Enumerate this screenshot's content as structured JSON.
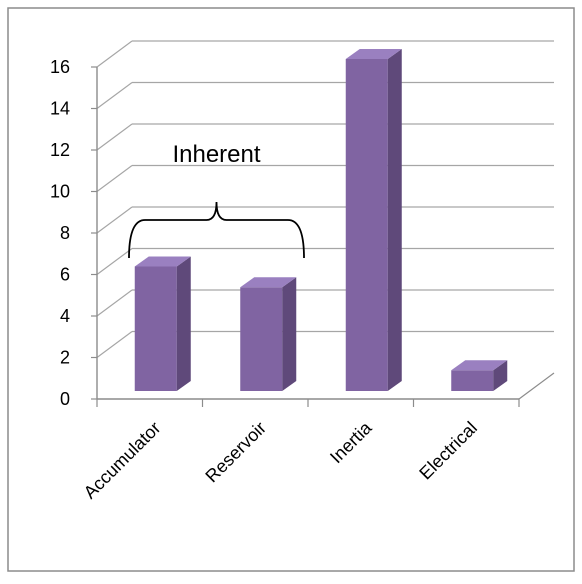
{
  "chart_data": {
    "type": "bar",
    "style": "3d-column",
    "categories": [
      "Accumulator",
      "Reservoir",
      "Inertia",
      "Electrical"
    ],
    "values": [
      6,
      5,
      16,
      1
    ],
    "ylim": [
      0,
      16
    ],
    "yticks": [
      0,
      2,
      4,
      6,
      8,
      10,
      12,
      14,
      16
    ],
    "grid": true,
    "legend": "none",
    "annotations": [
      {
        "text": "Inherent",
        "type": "brace",
        "spans": [
          "Accumulator",
          "Reservoir"
        ]
      }
    ],
    "colors": {
      "bar_front": "#8064a2",
      "bar_side": "#5f497a",
      "bar_top": "#9a80c0",
      "grid": "#a6a6a6",
      "border": "#8c8c8c"
    }
  }
}
